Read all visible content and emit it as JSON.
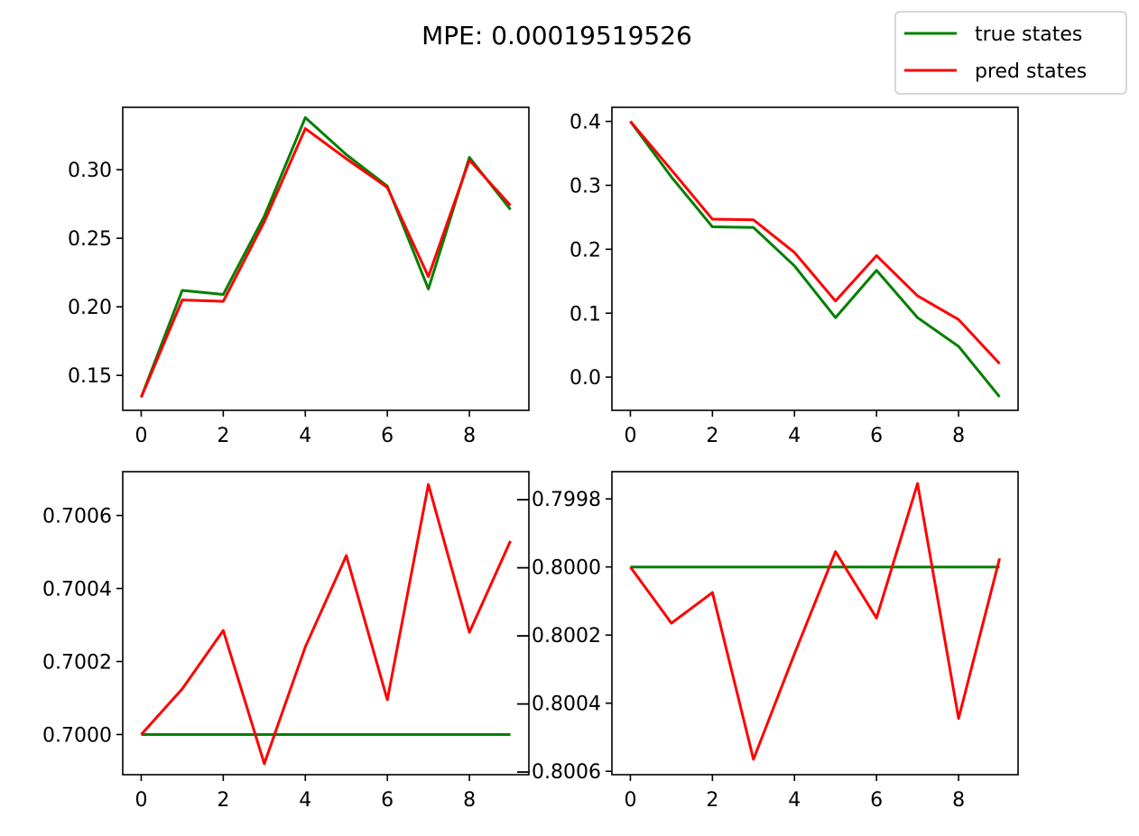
{
  "chart_data": {
    "type": "line",
    "title": "MPE: 0.00019519526",
    "legend": {
      "placement": "top-right",
      "entries": [
        {
          "label": "true states",
          "color": "#008000"
        },
        {
          "label": "pred states",
          "color": "#ff0000"
        }
      ]
    },
    "x": [
      0,
      1,
      2,
      3,
      4,
      5,
      6,
      7,
      8,
      9
    ],
    "subplots": [
      {
        "xlim": [
          -0.45,
          9.45
        ],
        "ylim": [
          0.1245,
          0.3455
        ],
        "xticks": [
          0,
          2,
          4,
          6,
          8
        ],
        "xtick_labels": [
          "0",
          "2",
          "4",
          "6",
          "8"
        ],
        "yticks": [
          0.15,
          0.2,
          0.25,
          0.3
        ],
        "ytick_labels": [
          "0.15",
          "0.20",
          "0.25",
          "0.30"
        ],
        "series": [
          {
            "color": "#008000",
            "values": [
              0.134,
              0.212,
              0.209,
              0.266,
              0.338,
              0.311,
              0.288,
              0.213,
              0.309,
              0.271
            ]
          },
          {
            "color": "#ff0000",
            "values": [
              0.134,
              0.205,
              0.204,
              0.262,
              0.33,
              0.308,
              0.287,
              0.222,
              0.307,
              0.274
            ]
          }
        ]
      },
      {
        "xlim": [
          -0.45,
          9.45
        ],
        "ylim": [
          -0.052,
          0.422
        ],
        "xticks": [
          0,
          2,
          4,
          6,
          8
        ],
        "xtick_labels": [
          "0",
          "2",
          "4",
          "6",
          "8"
        ],
        "yticks": [
          0.0,
          0.1,
          0.2,
          0.3,
          0.4
        ],
        "ytick_labels": [
          "0.0",
          "0.1",
          "0.2",
          "0.3",
          "0.4"
        ],
        "series": [
          {
            "color": "#008000",
            "values": [
              0.4,
              0.313,
              0.235,
              0.234,
              0.174,
              0.093,
              0.167,
              0.093,
              0.048,
              -0.031
            ]
          },
          {
            "color": "#ff0000",
            "values": [
              0.4,
              0.324,
              0.247,
              0.246,
              0.195,
              0.119,
              0.19,
              0.127,
              0.09,
              0.021
            ]
          }
        ]
      },
      {
        "xlim": [
          -0.45,
          9.45
        ],
        "ylim": [
          0.69989,
          0.70072
        ],
        "xticks": [
          0,
          2,
          4,
          6,
          8
        ],
        "xtick_labels": [
          "0",
          "2",
          "4",
          "6",
          "8"
        ],
        "yticks": [
          0.7,
          0.7002,
          0.7004,
          0.7006
        ],
        "ytick_labels": [
          "0.7000",
          "0.7002",
          "0.7004",
          "0.7006"
        ],
        "series": [
          {
            "color": "#008000",
            "values": [
              0.7,
              0.7,
              0.7,
              0.7,
              0.7,
              0.7,
              0.7,
              0.7,
              0.7,
              0.7
            ]
          },
          {
            "color": "#ff0000",
            "values": [
              0.7,
              0.700125,
              0.700285,
              0.69992,
              0.70024,
              0.70049,
              0.700095,
              0.700685,
              0.70028,
              0.70053
            ]
          }
        ]
      },
      {
        "xlim": [
          -0.45,
          9.45
        ],
        "ylim": [
          -0.80061,
          -0.79972
        ],
        "xticks": [
          0,
          2,
          4,
          6,
          8
        ],
        "xtick_labels": [
          "0",
          "2",
          "4",
          "6",
          "8"
        ],
        "yticks": [
          -0.7998,
          -0.8,
          -0.8002,
          -0.8004,
          -0.8006
        ],
        "ytick_labels": [
          "−0.7998",
          "−0.8000",
          "−0.8002",
          "−0.8004",
          "−0.8006"
        ],
        "series": [
          {
            "color": "#008000",
            "values": [
              -0.8,
              -0.8,
              -0.8,
              -0.8,
              -0.8,
              -0.8,
              -0.8,
              -0.8,
              -0.8,
              -0.8
            ]
          },
          {
            "color": "#ff0000",
            "values": [
              -0.8,
              -0.800165,
              -0.800075,
              -0.800565,
              -0.800255,
              -0.799955,
              -0.80015,
              -0.799755,
              -0.800445,
              -0.799975
            ]
          }
        ]
      }
    ]
  }
}
